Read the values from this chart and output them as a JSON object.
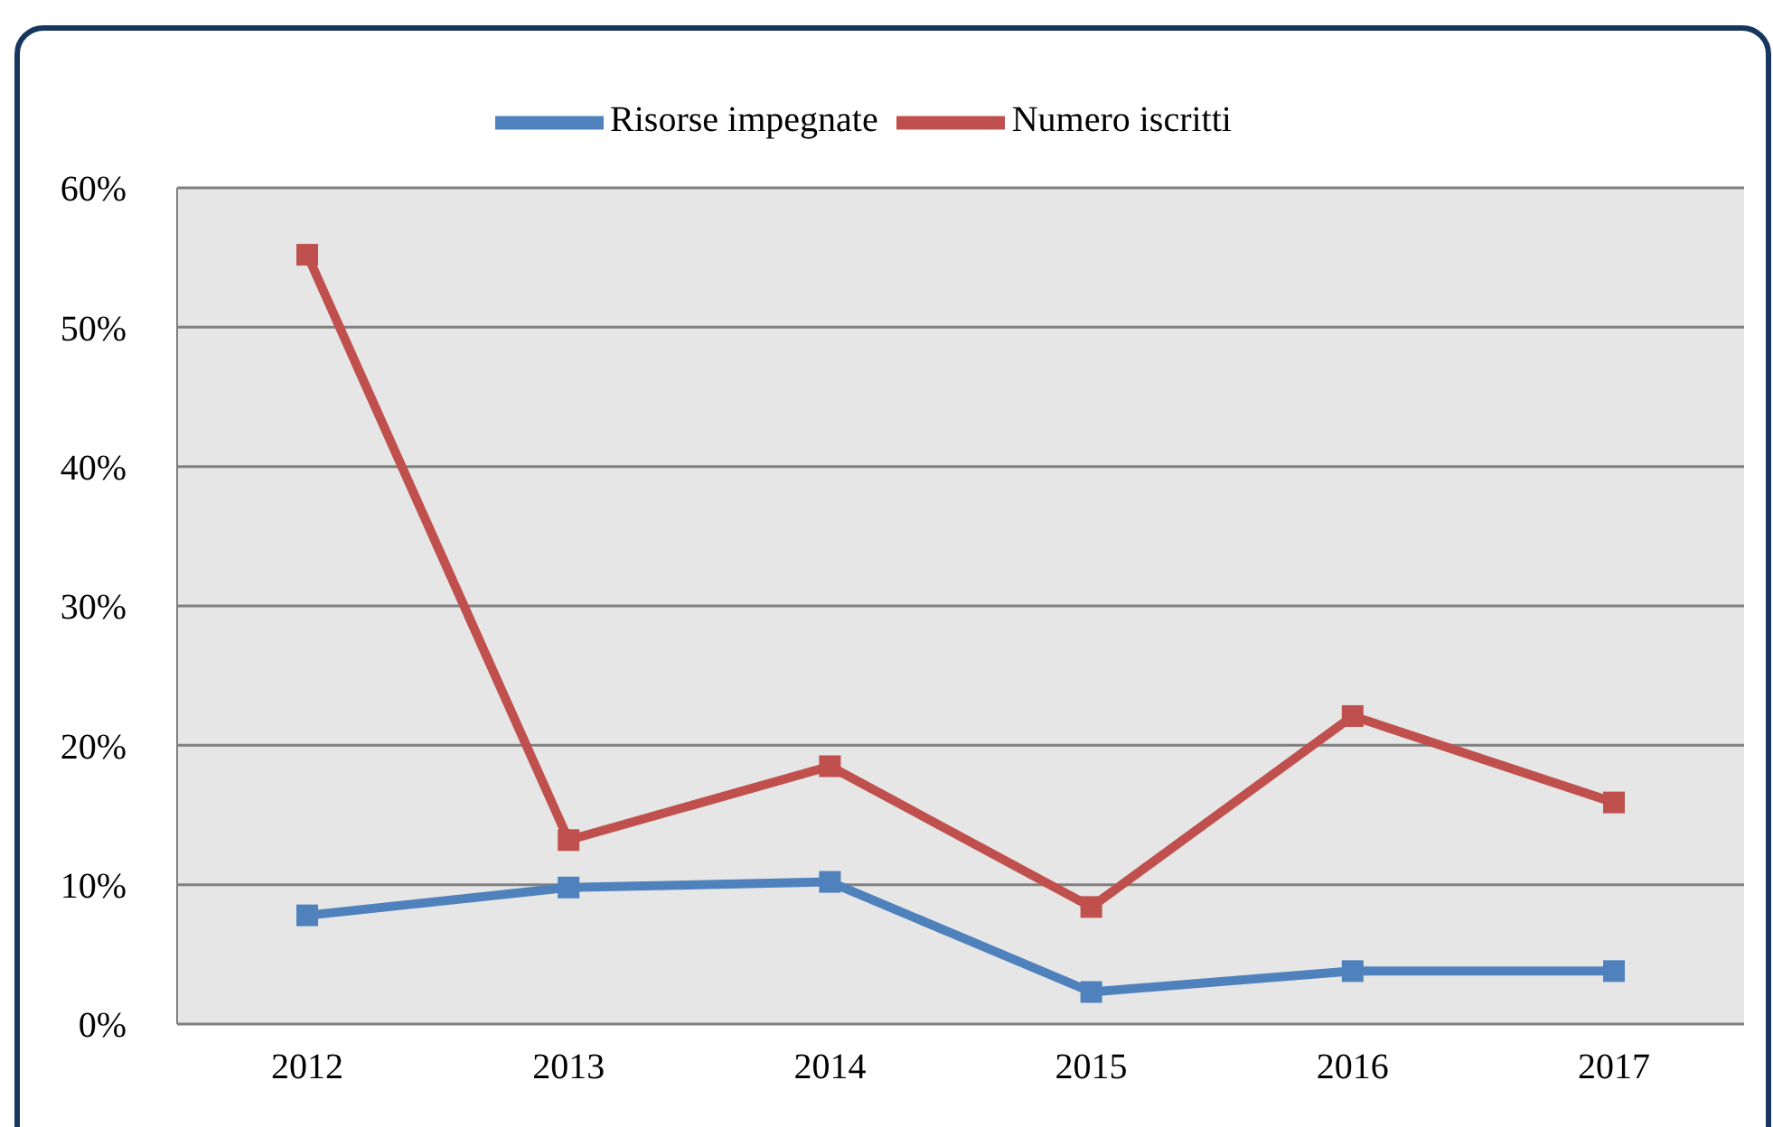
{
  "chart_data": {
    "type": "line",
    "categories": [
      "2012",
      "2013",
      "2014",
      "2015",
      "2016",
      "2017"
    ],
    "series": [
      {
        "name": "Risorse impegnate",
        "color": "#4f81bd",
        "values": [
          7.8,
          9.8,
          10.2,
          2.3,
          3.8,
          3.8
        ]
      },
      {
        "name": "Numero iscritti",
        "color": "#c0504d",
        "values": [
          55.2,
          13.2,
          18.5,
          8.4,
          22.1,
          15.9
        ]
      }
    ],
    "ylim": [
      0,
      60
    ],
    "yticks": [
      {
        "value": 0,
        "label": "0%"
      },
      {
        "value": 10,
        "label": "10%"
      },
      {
        "value": 20,
        "label": "20%"
      },
      {
        "value": 30,
        "label": "30%"
      },
      {
        "value": 40,
        "label": "40%"
      },
      {
        "value": 50,
        "label": "50%"
      },
      {
        "value": 60,
        "label": "60%"
      }
    ],
    "grid": "y",
    "legend": "top",
    "marker": "square",
    "line_style": "solid"
  }
}
